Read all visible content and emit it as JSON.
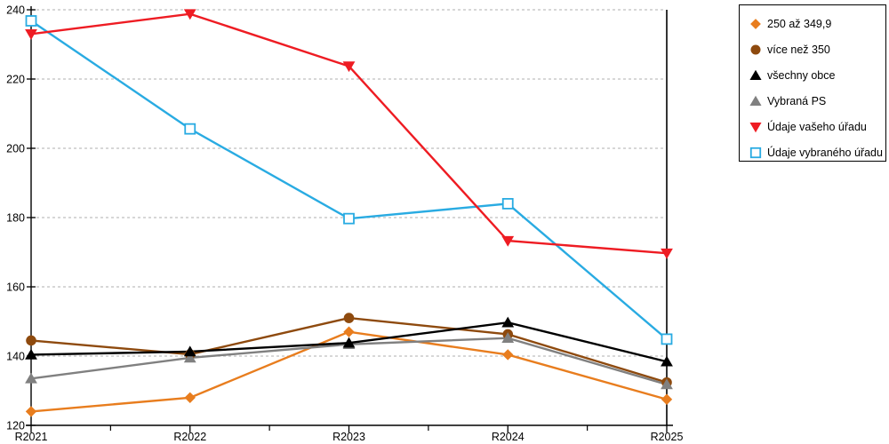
{
  "chart_data": {
    "type": "line",
    "title": "",
    "categories": [
      "R2021",
      "R2022",
      "R2023",
      "R2024",
      "R2025"
    ],
    "series": [
      {
        "name": "250 až 349,9",
        "color": "#E87D1E",
        "marker": "diamond",
        "values": [
          124.0,
          128.0,
          147.0,
          140.4,
          127.5
        ]
      },
      {
        "name": "více než 350",
        "color": "#8E4A0E",
        "marker": "circle",
        "values": [
          144.5,
          140.5,
          151.0,
          146.3,
          132.4
        ]
      },
      {
        "name": "všechny obce",
        "color": "#000000",
        "marker": "triangle-up",
        "values": [
          140.4,
          141.3,
          143.8,
          149.7,
          138.4
        ]
      },
      {
        "name": "Vybraná PS",
        "color": "#808080",
        "marker": "triangle-up",
        "values": [
          133.5,
          139.5,
          143.4,
          145.2,
          131.8
        ]
      },
      {
        "name": "Údaje vašeho úřadu",
        "color": "#EE1C23",
        "marker": "triangle-down",
        "values": [
          233.0,
          238.8,
          223.7,
          173.3,
          169.7
        ]
      },
      {
        "name": "Údaje vybraného úřadu",
        "color": "#29ABE2",
        "marker": "square-open",
        "values": [
          236.8,
          205.6,
          179.7,
          184.0,
          144.9
        ]
      }
    ],
    "ylim": [
      120,
      240
    ],
    "ytick_step": 20,
    "grid": "horizontal-dashed",
    "legend_position": "right",
    "xlabel": "",
    "ylabel": ""
  },
  "axes": {
    "y_ticks": [
      "120",
      "140",
      "160",
      "180",
      "200",
      "220",
      "240"
    ],
    "x_ticks": [
      "R2021",
      "R2022",
      "R2023",
      "R2024",
      "R2025"
    ]
  },
  "colors": {
    "grid": "#BFBFBF",
    "axis": "#000000",
    "background": "#FFFFFF"
  }
}
